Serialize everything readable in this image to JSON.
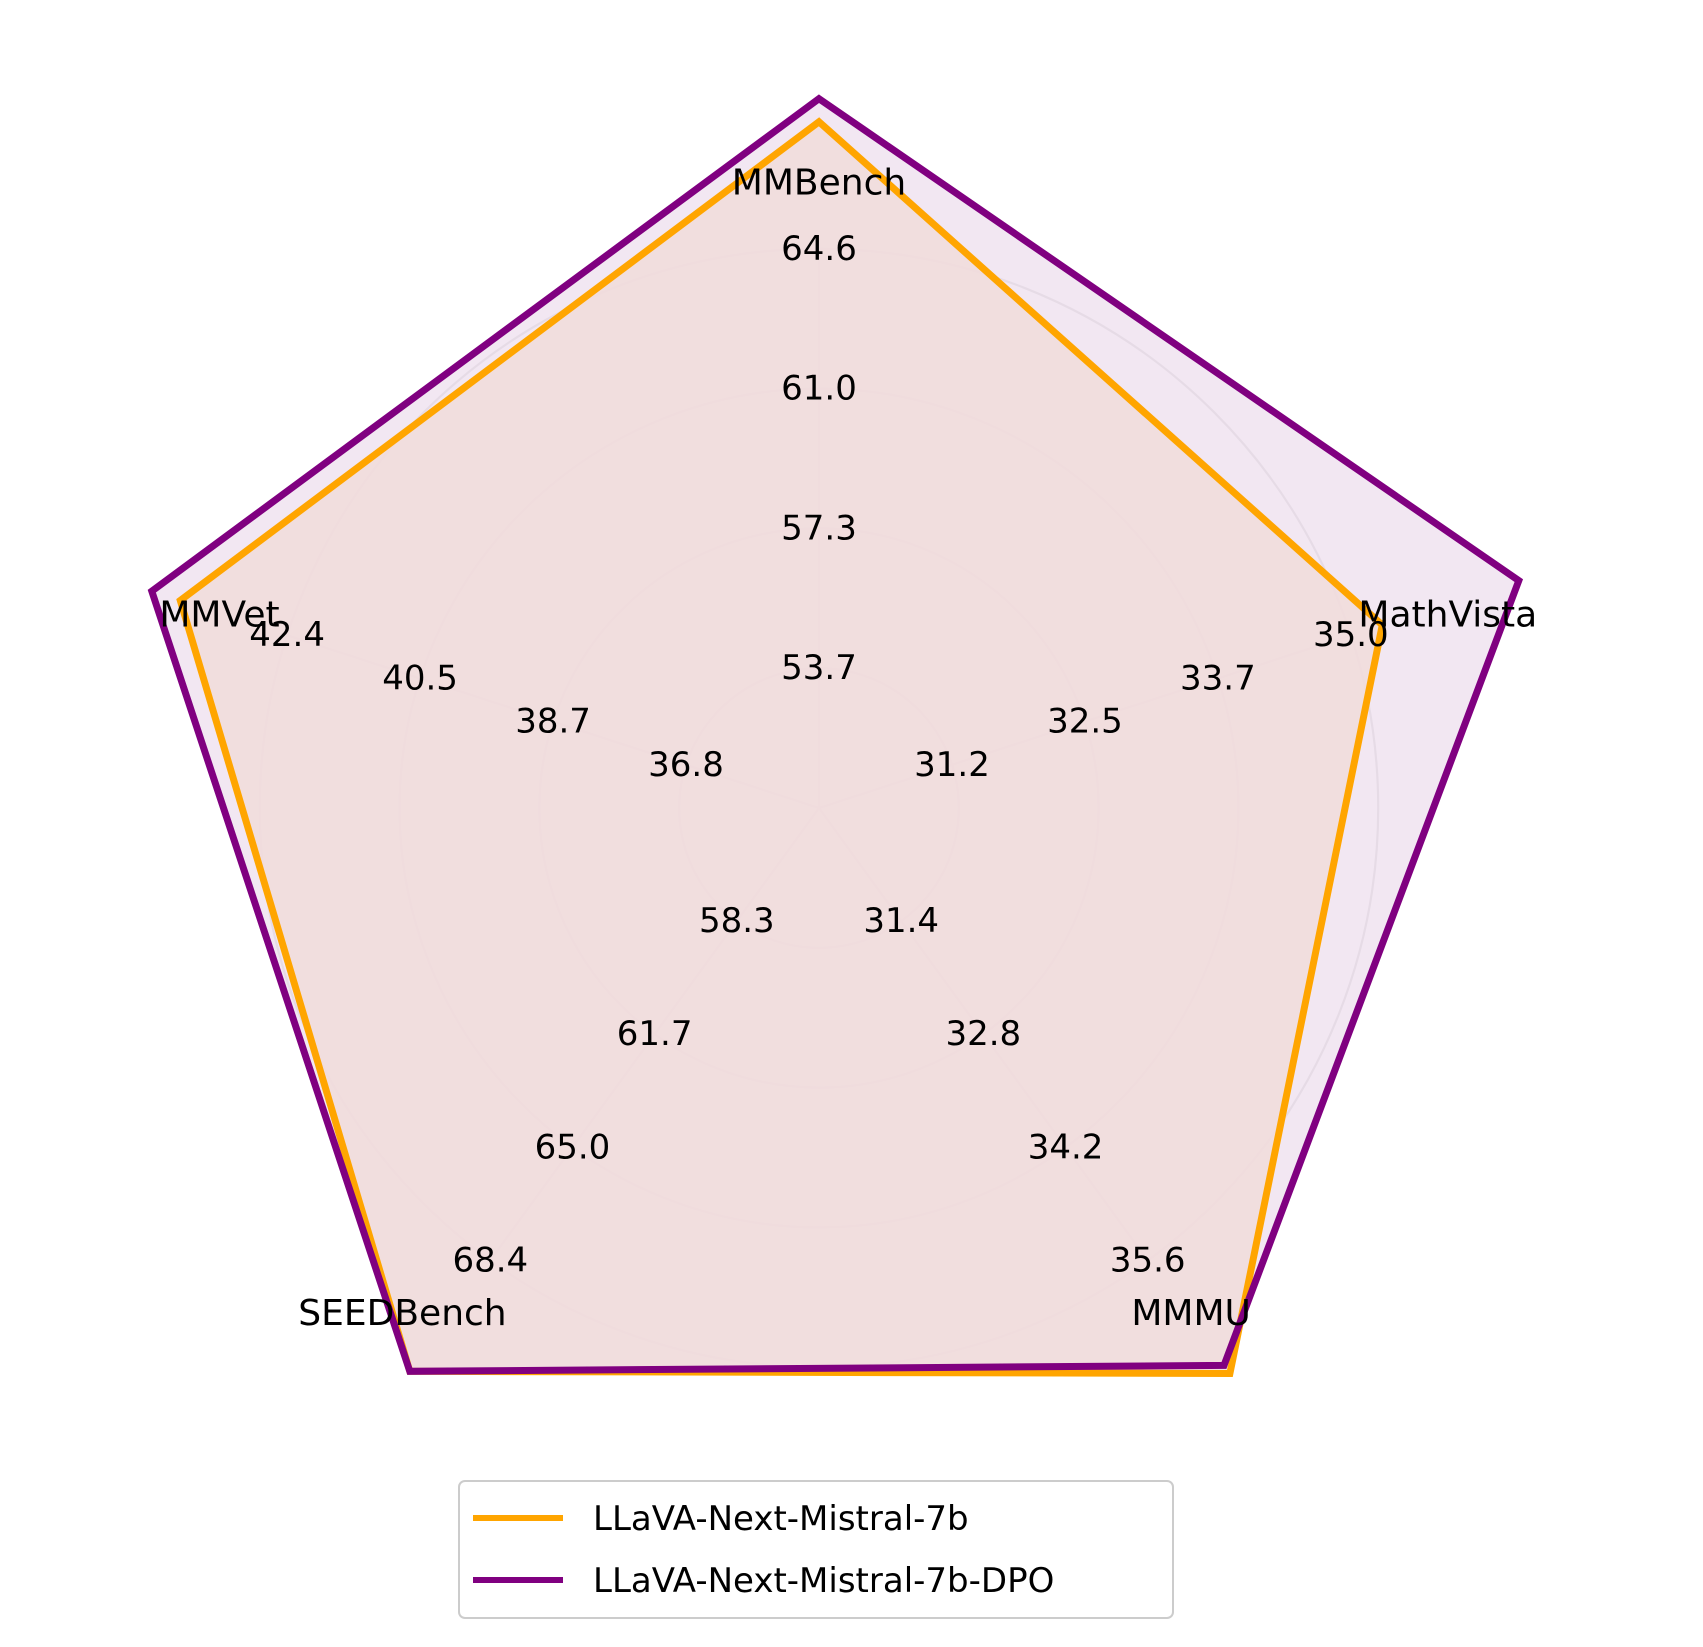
{
  "chart_data": {
    "type": "radar",
    "axes": [
      {
        "label": "MMBench",
        "ticks": [
          53.7,
          57.3,
          61.0,
          64.6
        ],
        "tick_labels": [
          "53.7",
          "57.3",
          "61.0",
          "64.6"
        ]
      },
      {
        "label": "MathVista",
        "ticks": [
          31.2,
          32.5,
          33.7,
          35.0
        ],
        "tick_labels": [
          "31.2",
          "32.5",
          "33.7",
          "35.0"
        ]
      },
      {
        "label": "MMMU",
        "ticks": [
          31.4,
          32.8,
          34.2,
          35.6
        ],
        "tick_labels": [
          "31.4",
          "32.8",
          "34.2",
          "35.6"
        ]
      },
      {
        "label": "SEEDBench",
        "ticks": [
          58.3,
          61.7,
          65.0,
          68.4
        ],
        "tick_labels": [
          "58.3",
          "61.7",
          "65.0",
          "68.4"
        ]
      },
      {
        "label": "MMVet",
        "ticks": [
          36.8,
          38.7,
          40.5,
          42.4
        ],
        "tick_labels": [
          "36.8",
          "38.7",
          "40.5",
          "42.4"
        ]
      }
    ],
    "grid": true,
    "legend": "bottom-center",
    "series": [
      {
        "name": "LLaVA-Next-Mistral-7b",
        "color": "#FFA500",
        "fill": "#F1DCDA",
        "values": [
          67.9,
          35.3,
          37.0,
          71.7,
          43.9
        ]
      },
      {
        "name": "LLaVA-Next-Mistral-7b-DPO",
        "color": "#800080",
        "fill": "#F0E3F0",
        "values": [
          68.5,
          36.6,
          36.9,
          71.7,
          44.3
        ]
      }
    ]
  }
}
